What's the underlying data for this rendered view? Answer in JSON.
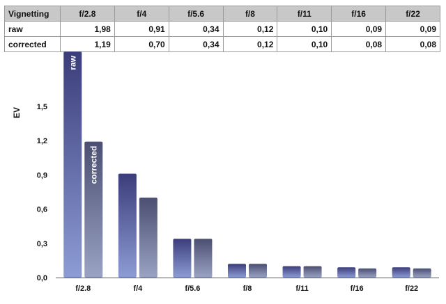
{
  "table": {
    "header": [
      "Vignetting",
      "f/2.8",
      "f/4",
      "f/5.6",
      "f/8",
      "f/11",
      "f/16",
      "f/22"
    ],
    "rows": [
      [
        "raw",
        "1,98",
        "0,91",
        "0,34",
        "0,12",
        "0,10",
        "0,09",
        "0,09"
      ],
      [
        "corrected",
        "1,19",
        "0,70",
        "0,34",
        "0,12",
        "0,10",
        "0,08",
        "0,08"
      ]
    ]
  },
  "chart_data": {
    "type": "bar",
    "categories": [
      "f/2.8",
      "f/4",
      "f/5.6",
      "f/8",
      "f/11",
      "f/16",
      "f/22"
    ],
    "series": [
      {
        "name": "raw",
        "values": [
          1.98,
          0.91,
          0.34,
          0.12,
          0.1,
          0.09,
          0.09
        ]
      },
      {
        "name": "corrected",
        "values": [
          1.19,
          0.7,
          0.34,
          0.12,
          0.1,
          0.08,
          0.08
        ]
      }
    ],
    "ylabel": "EV",
    "ylim": [
      0,
      1.98
    ],
    "yticks": [
      "0,0",
      "0,3",
      "0,6",
      "0,9",
      "1,2",
      "1,5"
    ],
    "bar_labels": [
      "raw",
      "corrected"
    ],
    "grid": false,
    "legend": "none",
    "colors": {
      "raw_top": "#3b3d7a",
      "raw_bottom": "#8d9cd4",
      "corrected_top": "#4b4f72",
      "corrected_bottom": "#9aa3c4",
      "axis": "#555555"
    }
  }
}
